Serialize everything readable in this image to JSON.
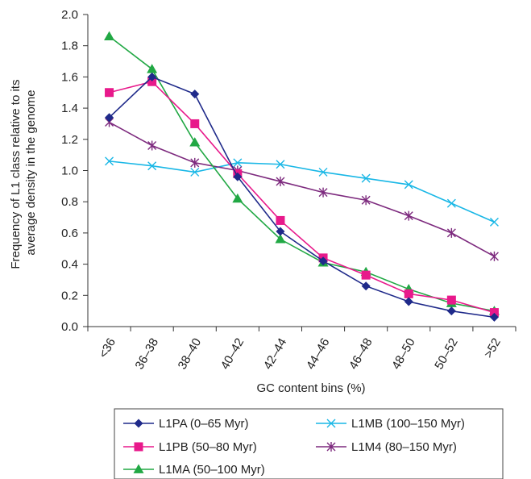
{
  "chart_data": {
    "type": "line",
    "categories": [
      "<36",
      "36–38",
      "38–40",
      "40–42",
      "42–44",
      "44–46",
      "46–48",
      "48–50",
      "50–52",
      ">52"
    ],
    "xlabel": "GC content bins (%)",
    "ylabel_lines": [
      "Frequency of L1 class relative to its",
      "average density in the genome"
    ],
    "ylim": [
      0,
      2.0
    ],
    "yticks": [
      "0.0",
      "0.2",
      "0.4",
      "0.6",
      "0.8",
      "1.0",
      "1.2",
      "1.4",
      "1.6",
      "1.8",
      "2.0"
    ],
    "grid": false,
    "legend_position": "bottom",
    "series": [
      {
        "name": "L1PA (0–65 Myr)",
        "color": "#1f2a8a",
        "marker": "diamond",
        "values": [
          1.34,
          1.6,
          1.49,
          0.96,
          0.61,
          0.42,
          0.26,
          0.16,
          0.1,
          0.06
        ]
      },
      {
        "name": "L1PB (50–80 Myr)",
        "color": "#e8198b",
        "marker": "square",
        "values": [
          1.5,
          1.57,
          1.3,
          0.98,
          0.68,
          0.44,
          0.33,
          0.21,
          0.17,
          0.09
        ]
      },
      {
        "name": "L1MA (50–100 Myr)",
        "color": "#21a844",
        "marker": "triangle",
        "values": [
          1.86,
          1.65,
          1.18,
          0.82,
          0.56,
          0.41,
          0.35,
          0.24,
          0.15,
          0.1
        ]
      },
      {
        "name": "L1MB (100–150 Myr)",
        "color": "#19b7e6",
        "marker": "x",
        "values": [
          1.06,
          1.03,
          0.99,
          1.05,
          1.04,
          0.99,
          0.95,
          0.91,
          0.79,
          0.67
        ]
      },
      {
        "name": "L1M4 (80–150 Myr)",
        "color": "#7d2a7e",
        "marker": "asterisk",
        "values": [
          1.31,
          1.16,
          1.05,
          1.0,
          0.93,
          0.86,
          0.81,
          0.71,
          0.6,
          0.45
        ]
      }
    ]
  }
}
